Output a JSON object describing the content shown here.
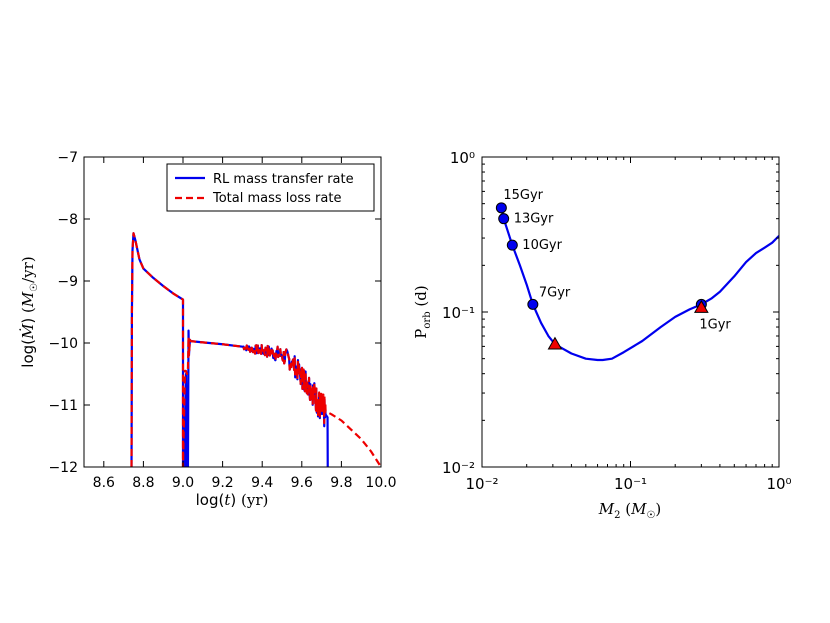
{
  "chart_data": [
    {
      "type": "line",
      "xlabel": "log(t) (yr)",
      "ylabel": "log(Ṁ) (M☉/yr)",
      "xlim": [
        8.5,
        10.0
      ],
      "ylim": [
        -12,
        -7
      ],
      "x_ticks": [
        "8.6",
        "8.8",
        "9.0",
        "9.2",
        "9.4",
        "9.6",
        "9.8",
        "10.0"
      ],
      "y_ticks": [
        "−12",
        "−11",
        "−10",
        "−9",
        "−8",
        "−7"
      ],
      "legend_position": "top-right",
      "series": [
        {
          "name": "RL mass transfer rate",
          "color": "#0000ee",
          "style": "solid",
          "x": [
            8.74,
            8.742,
            8.745,
            8.75,
            8.76,
            8.78,
            8.8,
            8.85,
            8.9,
            8.95,
            9.0,
            9.0,
            9.0,
            9.01,
            9.011,
            9.015,
            9.02,
            9.025,
            9.028,
            9.03,
            9.035,
            9.04,
            9.1,
            9.2,
            9.3,
            9.35,
            9.4,
            9.45,
            9.5,
            9.55,
            9.6,
            9.62,
            9.65,
            9.68,
            9.7,
            9.72,
            9.73,
            9.731
          ],
          "y": [
            -12.0,
            -9.5,
            -8.5,
            -8.23,
            -8.35,
            -8.65,
            -8.8,
            -8.95,
            -9.08,
            -9.2,
            -9.3,
            -12.0,
            -12.0,
            -12.0,
            -11.2,
            -10.5,
            -12.0,
            -12.0,
            -9.8,
            -10.2,
            -9.95,
            -9.97,
            -9.99,
            -10.02,
            -10.06,
            -10.1,
            -10.12,
            -10.15,
            -10.2,
            -10.3,
            -10.55,
            -10.6,
            -10.75,
            -10.95,
            -11.1,
            -11.15,
            -11.2,
            -12.0
          ]
        },
        {
          "name": "Total mass loss rate",
          "color": "#ee0000",
          "style": "dashed",
          "x": [
            8.74,
            8.742,
            8.745,
            8.75,
            8.76,
            8.78,
            8.8,
            8.85,
            8.9,
            8.95,
            9.0,
            9.0,
            9.01,
            9.015,
            9.02,
            9.025,
            9.028,
            9.03,
            9.035,
            9.04,
            9.1,
            9.2,
            9.3,
            9.35,
            9.4,
            9.45,
            9.5,
            9.55,
            9.6,
            9.62,
            9.65,
            9.68,
            9.7,
            9.72,
            9.75,
            9.8,
            9.85,
            9.9,
            9.95,
            10.0
          ],
          "y": [
            -12.0,
            -9.5,
            -8.5,
            -8.23,
            -8.35,
            -8.65,
            -8.8,
            -8.95,
            -9.08,
            -9.2,
            -9.3,
            -12.0,
            -10.45,
            -10.45,
            -10.5,
            -10.4,
            -9.9,
            -10.2,
            -9.95,
            -9.97,
            -9.99,
            -10.02,
            -10.06,
            -10.1,
            -10.12,
            -10.15,
            -10.2,
            -10.3,
            -10.55,
            -10.6,
            -10.75,
            -10.95,
            -11.05,
            -11.1,
            -11.15,
            -11.25,
            -11.4,
            -11.55,
            -11.75,
            -12.0
          ]
        }
      ]
    },
    {
      "type": "line",
      "xlabel": "M₂ (M☉)",
      "ylabel": "P_orb (d)",
      "xscale": "log",
      "yscale": "log",
      "xlim": [
        0.01,
        1.0
      ],
      "ylim": [
        0.01,
        1.0
      ],
      "x_ticks": [
        "10⁻²",
        "10⁻¹",
        "10⁰"
      ],
      "y_ticks": [
        "10⁻²",
        "10⁻¹",
        "10⁰"
      ],
      "series": [
        {
          "color": "#0000ee",
          "x": [
            0.0135,
            0.014,
            0.016,
            0.018,
            0.02,
            0.022,
            0.025,
            0.028,
            0.031,
            0.035,
            0.04,
            0.05,
            0.06,
            0.065,
            0.075,
            0.09,
            0.12,
            0.16,
            0.2,
            0.25,
            0.3,
            0.35,
            0.4,
            0.5,
            0.6,
            0.7,
            0.8,
            0.9,
            1.0
          ],
          "y": [
            0.47,
            0.4,
            0.27,
            0.2,
            0.15,
            0.112,
            0.085,
            0.07,
            0.062,
            0.058,
            0.054,
            0.05,
            0.049,
            0.049,
            0.05,
            0.055,
            0.065,
            0.08,
            0.093,
            0.104,
            0.112,
            0.122,
            0.135,
            0.17,
            0.21,
            0.24,
            0.26,
            0.28,
            0.31
          ]
        }
      ],
      "markers": [
        {
          "label": "15Gyr",
          "x": 0.0135,
          "y": 0.47,
          "shape": "circle",
          "color": "#0000ee"
        },
        {
          "label": "13Gyr",
          "x": 0.014,
          "y": 0.4,
          "shape": "circle",
          "color": "#0000ee"
        },
        {
          "label": "10Gyr",
          "x": 0.016,
          "y": 0.27,
          "shape": "circle",
          "color": "#0000ee"
        },
        {
          "label": "7Gyr",
          "x": 0.022,
          "y": 0.112,
          "shape": "circle",
          "color": "#0000ee"
        },
        {
          "label": "1Gyr",
          "x": 0.3,
          "y": 0.112,
          "shape": "circle",
          "color": "#0000ee"
        },
        {
          "label": "",
          "x": 0.031,
          "y": 0.062,
          "shape": "triangle",
          "color": "#ee0000"
        },
        {
          "label": "",
          "x": 0.3,
          "y": 0.107,
          "shape": "triangle",
          "color": "#ee0000"
        }
      ]
    }
  ]
}
